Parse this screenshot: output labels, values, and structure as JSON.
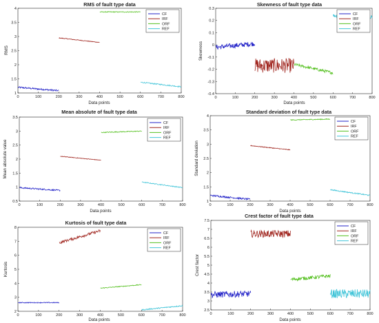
{
  "legend_labels": [
    "CF",
    "IRF",
    "ORF",
    "REF"
  ],
  "series_colors": {
    "CF": "#2323c8",
    "IRF": "#a0251e",
    "ORF": "#55c020",
    "REF": "#40c4d8"
  },
  "chart_data": [
    {
      "type": "line",
      "title": "RMS of fault type data",
      "xlabel": "Data points",
      "ylabel": "RMS",
      "xlim": [
        0,
        800
      ],
      "ylim": [
        1,
        4
      ],
      "xticks": [
        "0",
        "100",
        "200",
        "300",
        "400",
        "500",
        "600",
        "700",
        "800"
      ],
      "yticks": [
        "1",
        "1.5",
        "2",
        "2.5",
        "3",
        "3.5",
        "4"
      ],
      "legend": "top-right",
      "grid": false,
      "series": [
        {
          "name": "CF",
          "x_range": [
            1,
            200
          ],
          "start": 1.2,
          "end": 1.08,
          "noise": 0.03
        },
        {
          "name": "IRF",
          "x_range": [
            201,
            400
          ],
          "start": 2.95,
          "end": 2.79,
          "noise": 0.012
        },
        {
          "name": "ORF",
          "x_range": [
            401,
            600
          ],
          "start": 3.87,
          "end": 3.87,
          "noise": 0.015
        },
        {
          "name": "REF",
          "x_range": [
            601,
            800
          ],
          "start": 1.38,
          "end": 1.22,
          "noise": 0.02
        }
      ]
    },
    {
      "type": "line",
      "title": "Skewness of fault type data",
      "xlabel": "Data points",
      "ylabel": "Skewness",
      "xlim": [
        0,
        800
      ],
      "ylim": [
        -0.4,
        0.3
      ],
      "xticks": [
        "0",
        "100",
        "200",
        "300",
        "400",
        "500",
        "600",
        "700",
        "800"
      ],
      "yticks": [
        "-0.4",
        "-0.3",
        "-0.2",
        "-0.1",
        "0",
        "0.1",
        "0.2",
        "0.3"
      ],
      "legend": "top-right",
      "grid": false,
      "series": [
        {
          "name": "CF",
          "x_range": [
            1,
            200
          ],
          "start": -0.02,
          "end": 0.01,
          "noise": 0.02
        },
        {
          "name": "IRF",
          "x_range": [
            201,
            400
          ],
          "start": -0.17,
          "end": -0.17,
          "noise": 0.06
        },
        {
          "name": "ORF",
          "x_range": [
            401,
            600
          ],
          "start": -0.16,
          "end": -0.23,
          "noise": 0.012
        },
        {
          "name": "REF",
          "x_range": [
            601,
            800
          ],
          "start": 0.24,
          "end": 0.23,
          "noise": 0.015
        }
      ]
    },
    {
      "type": "line",
      "title": "Mean absolute of fault type data",
      "xlabel": "Data points",
      "ylabel": "Mean absolute value",
      "xlim": [
        0,
        800
      ],
      "ylim": [
        0.5,
        3.5
      ],
      "xticks": [
        "0",
        "100",
        "200",
        "300",
        "400",
        "500",
        "600",
        "700",
        "800"
      ],
      "yticks": [
        "0.5",
        "1",
        "1.5",
        "2",
        "2.5",
        "3",
        "3.5"
      ],
      "legend": "top-right",
      "grid": false,
      "series": [
        {
          "name": "CF",
          "x_range": [
            1,
            200
          ],
          "start": 0.98,
          "end": 0.88,
          "noise": 0.025
        },
        {
          "name": "IRF",
          "x_range": [
            201,
            400
          ],
          "start": 2.1,
          "end": 1.96,
          "noise": 0.01
        },
        {
          "name": "ORF",
          "x_range": [
            401,
            600
          ],
          "start": 2.95,
          "end": 3.0,
          "noise": 0.015
        },
        {
          "name": "REF",
          "x_range": [
            601,
            800
          ],
          "start": 1.18,
          "end": 0.98,
          "noise": 0.015
        }
      ]
    },
    {
      "type": "line",
      "title": "Standard deviation of fault type data",
      "xlabel": "Data points",
      "ylabel": "Standard deviation",
      "xlim": [
        0,
        800
      ],
      "ylim": [
        1,
        4
      ],
      "xticks": [
        "0",
        "100",
        "200",
        "300",
        "400",
        "500",
        "600",
        "700",
        "800"
      ],
      "yticks": [
        "1",
        "1.5",
        "2",
        "2.5",
        "3",
        "3.5",
        "4"
      ],
      "legend": "top-right",
      "grid": false,
      "series": [
        {
          "name": "CF",
          "x_range": [
            1,
            200
          ],
          "start": 1.2,
          "end": 1.06,
          "noise": 0.03
        },
        {
          "name": "IRF",
          "x_range": [
            201,
            400
          ],
          "start": 2.95,
          "end": 2.8,
          "noise": 0.012
        },
        {
          "name": "ORF",
          "x_range": [
            401,
            600
          ],
          "start": 3.85,
          "end": 3.88,
          "noise": 0.015
        },
        {
          "name": "REF",
          "x_range": [
            601,
            800
          ],
          "start": 1.4,
          "end": 1.2,
          "noise": 0.02
        }
      ]
    },
    {
      "type": "line",
      "title": "Kurtosis of fault type data",
      "xlabel": "Data points",
      "ylabel": "Kurtosis",
      "xlim": [
        0,
        800
      ],
      "ylim": [
        2,
        8
      ],
      "xticks": [
        "0",
        "100",
        "200",
        "300",
        "400",
        "500",
        "600",
        "700",
        "800"
      ],
      "yticks": [
        "2",
        "3",
        "4",
        "5",
        "6",
        "7",
        "8"
      ],
      "legend": "top-right",
      "grid": false,
      "series": [
        {
          "name": "CF",
          "x_range": [
            1,
            200
          ],
          "start": 2.62,
          "end": 2.62,
          "noise": 0.03
        },
        {
          "name": "IRF",
          "x_range": [
            201,
            400
          ],
          "start": 6.9,
          "end": 7.75,
          "noise": 0.1
        },
        {
          "name": "ORF",
          "x_range": [
            401,
            600
          ],
          "start": 3.65,
          "end": 3.9,
          "noise": 0.03
        },
        {
          "name": "REF",
          "x_range": [
            601,
            800
          ],
          "start": 2.1,
          "end": 2.4,
          "noise": 0.04
        }
      ]
    },
    {
      "type": "line",
      "title": "Crest factor of fault type data",
      "xlabel": "Data points",
      "ylabel": "Crest factor",
      "xlim": [
        0,
        800
      ],
      "ylim": [
        2.5,
        7.5
      ],
      "xticks": [
        "0",
        "100",
        "200",
        "300",
        "400",
        "500",
        "600",
        "700",
        "800"
      ],
      "yticks": [
        "2.5",
        "3",
        "3.5",
        "4",
        "4.5",
        "5",
        "5.5",
        "6",
        "6.5",
        "7",
        "7.5"
      ],
      "legend": "top-right",
      "grid": false,
      "series": [
        {
          "name": "CF",
          "x_range": [
            1,
            200
          ],
          "start": 3.35,
          "end": 3.4,
          "noise": 0.18
        },
        {
          "name": "IRF",
          "x_range": [
            201,
            400
          ],
          "start": 6.75,
          "end": 6.75,
          "noise": 0.2
        },
        {
          "name": "ORF",
          "x_range": [
            401,
            600
          ],
          "start": 4.2,
          "end": 4.4,
          "noise": 0.1
        },
        {
          "name": "REF",
          "x_range": [
            601,
            800
          ],
          "start": 3.4,
          "end": 3.4,
          "noise": 0.25
        }
      ]
    }
  ]
}
